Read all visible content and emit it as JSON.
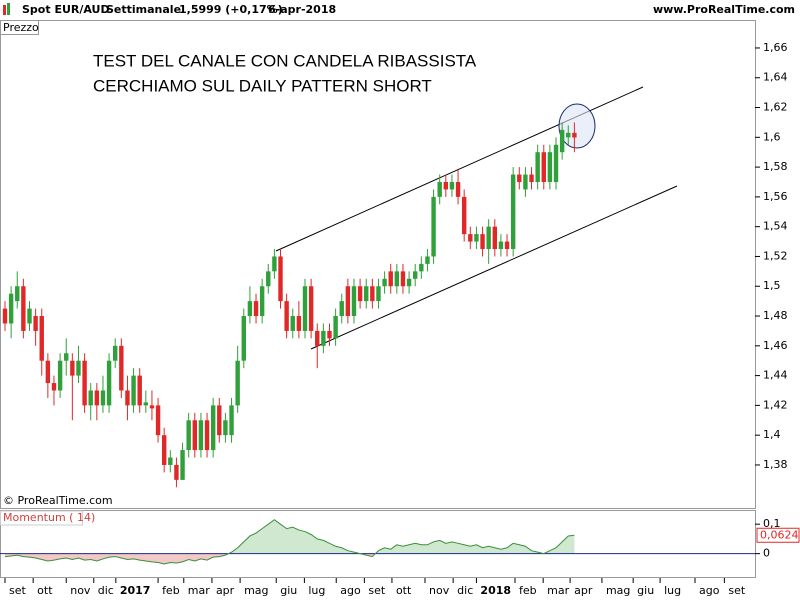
{
  "header": {
    "symbol": "Spot EUR/AUD",
    "period": "Settimanale",
    "quote": "1,5999 (+0,17%)",
    "date": "6-apr-2018",
    "site": "www.ProRealTime.com"
  },
  "chart_data": {
    "type": "candlestick",
    "pane_label": "Prezzo",
    "copyright": "© ProRealTime.com",
    "annotations": [
      "TEST DEL CANALE CON CANDELA RIBASSISTA",
      "CERCHIAMO SUL DAILY PATTERN SHORT"
    ],
    "up_color": "#2fa03a",
    "down_color": "#e02828",
    "xlim": [
      -0.817,
      122.5
    ],
    "xticks": [
      {
        "value": 0,
        "label": "set"
      },
      {
        "value": 4.6,
        "label": "ott"
      },
      {
        "value": 10,
        "label": "nov"
      },
      {
        "value": 14.5,
        "label": "dic"
      },
      {
        "value": 18.1,
        "label": "2017"
      },
      {
        "value": 25,
        "label": "feb"
      },
      {
        "value": 29.2,
        "label": "mar"
      },
      {
        "value": 33.8,
        "label": "apr"
      },
      {
        "value": 38.4,
        "label": "mag"
      },
      {
        "value": 44.3,
        "label": "giu"
      },
      {
        "value": 48.9,
        "label": "lug"
      },
      {
        "value": 54.1,
        "label": "ago"
      },
      {
        "value": 58.7,
        "label": "set"
      },
      {
        "value": 63.2,
        "label": "ott"
      },
      {
        "value": 68.6,
        "label": "nov"
      },
      {
        "value": 73.2,
        "label": "dic"
      },
      {
        "value": 77,
        "label": "2018"
      },
      {
        "value": 83.3,
        "label": "feb"
      },
      {
        "value": 87.9,
        "label": "mar"
      },
      {
        "value": 92.3,
        "label": "apr"
      },
      {
        "value": 97.5,
        "label": "mag"
      },
      {
        "value": 102.6,
        "label": "giu"
      },
      {
        "value": 107,
        "label": "lug"
      },
      {
        "value": 112.7,
        "label": "ago"
      },
      {
        "value": 117.5,
        "label": "set"
      }
    ],
    "ylim": [
      1.3511,
      1.6687
    ],
    "yticks": [
      {
        "value": 1.66,
        "label": "1,66"
      },
      {
        "value": 1.64,
        "label": "1,64"
      },
      {
        "value": 1.62,
        "label": "1,62"
      },
      {
        "value": 1.6,
        "label": "1,6"
      },
      {
        "value": 1.58,
        "label": "1,58"
      },
      {
        "value": 1.56,
        "label": "1,56"
      },
      {
        "value": 1.54,
        "label": "1,54"
      },
      {
        "value": 1.52,
        "label": "1,52"
      },
      {
        "value": 1.5,
        "label": "1,5"
      },
      {
        "value": 1.48,
        "label": "1,48"
      },
      {
        "value": 1.46,
        "label": "1,46"
      },
      {
        "value": 1.44,
        "label": "1,44"
      },
      {
        "value": 1.42,
        "label": "1,42"
      },
      {
        "value": 1.4,
        "label": "1,4"
      },
      {
        "value": 1.38,
        "label": "1,38"
      }
    ],
    "open": [
      1.485,
      1.475,
      1.49,
      1.5,
      1.475,
      1.48,
      1.48,
      1.45,
      1.435,
      1.43,
      1.45,
      1.45,
      1.44,
      1.45,
      1.42,
      1.43,
      1.42,
      1.42,
      1.45,
      1.46,
      1.43,
      1.42,
      1.44,
      1.42,
      1.42,
      1.42,
      1.4,
      1.38,
      1.38,
      1.37,
      1.39,
      1.41,
      1.39,
      1.41,
      1.39,
      1.42,
      1.4,
      1.4,
      1.42,
      1.45,
      1.48,
      1.49,
      1.48,
      1.5,
      1.51,
      1.52,
      1.49,
      1.47,
      1.48,
      1.47,
      1.5,
      1.47,
      1.46,
      1.47,
      1.465,
      1.48,
      1.5,
      1.48,
      1.5,
      1.49,
      1.5,
      1.49,
      1.5,
      1.51,
      1.5,
      1.51,
      1.5,
      1.505,
      1.51,
      1.515,
      1.52,
      1.56,
      1.57,
      1.565,
      1.57,
      1.56,
      1.535,
      1.53,
      1.535,
      1.525,
      1.54,
      1.525,
      1.53,
      1.525,
      1.575,
      1.565,
      1.575,
      1.57,
      1.59,
      1.57,
      1.57,
      1.59,
      1.6,
      1.603
    ],
    "high": [
      1.49,
      1.5,
      1.51,
      1.505,
      1.49,
      1.485,
      1.485,
      1.455,
      1.44,
      1.455,
      1.465,
      1.455,
      1.46,
      1.455,
      1.435,
      1.435,
      1.44,
      1.455,
      1.465,
      1.465,
      1.44,
      1.445,
      1.445,
      1.43,
      1.43,
      1.425,
      1.405,
      1.39,
      1.385,
      1.395,
      1.415,
      1.415,
      1.415,
      1.415,
      1.425,
      1.425,
      1.415,
      1.425,
      1.46,
      1.485,
      1.5,
      1.495,
      1.505,
      1.515,
      1.525,
      1.525,
      1.495,
      1.485,
      1.49,
      1.505,
      1.505,
      1.475,
      1.475,
      1.475,
      1.485,
      1.495,
      1.505,
      1.505,
      1.505,
      1.505,
      1.505,
      1.505,
      1.51,
      1.515,
      1.515,
      1.515,
      1.51,
      1.515,
      1.52,
      1.525,
      1.565,
      1.575,
      1.575,
      1.575,
      1.578,
      1.565,
      1.54,
      1.54,
      1.54,
      1.545,
      1.545,
      1.535,
      1.535,
      1.58,
      1.58,
      1.58,
      1.58,
      1.595,
      1.595,
      1.595,
      1.6,
      1.61,
      1.608,
      1.61
    ],
    "low": [
      1.47,
      1.465,
      1.485,
      1.465,
      1.47,
      1.46,
      1.44,
      1.425,
      1.42,
      1.425,
      1.44,
      1.41,
      1.435,
      1.415,
      1.41,
      1.41,
      1.415,
      1.415,
      1.445,
      1.425,
      1.41,
      1.415,
      1.415,
      1.415,
      1.41,
      1.395,
      1.375,
      1.375,
      1.365,
      1.37,
      1.385,
      1.385,
      1.385,
      1.385,
      1.385,
      1.395,
      1.395,
      1.395,
      1.415,
      1.445,
      1.475,
      1.475,
      1.475,
      1.495,
      1.505,
      1.485,
      1.465,
      1.465,
      1.465,
      1.465,
      1.465,
      1.445,
      1.455,
      1.46,
      1.46,
      1.475,
      1.475,
      1.475,
      1.485,
      1.485,
      1.485,
      1.485,
      1.495,
      1.495,
      1.495,
      1.495,
      1.495,
      1.5,
      1.505,
      1.51,
      1.515,
      1.555,
      1.56,
      1.56,
      1.555,
      1.53,
      1.525,
      1.525,
      1.52,
      1.515,
      1.52,
      1.52,
      1.52,
      1.52,
      1.565,
      1.56,
      1.565,
      1.565,
      1.565,
      1.565,
      1.565,
      1.585,
      1.595,
      1.59
    ],
    "close": [
      1.475,
      1.495,
      1.5,
      1.47,
      1.485,
      1.47,
      1.45,
      1.435,
      1.43,
      1.45,
      1.455,
      1.44,
      1.45,
      1.42,
      1.43,
      1.42,
      1.43,
      1.45,
      1.46,
      1.43,
      1.42,
      1.44,
      1.42,
      1.422,
      1.418,
      1.4,
      1.38,
      1.385,
      1.37,
      1.39,
      1.41,
      1.39,
      1.41,
      1.39,
      1.42,
      1.4,
      1.41,
      1.42,
      1.45,
      1.48,
      1.49,
      1.48,
      1.5,
      1.51,
      1.52,
      1.49,
      1.47,
      1.48,
      1.47,
      1.5,
      1.47,
      1.46,
      1.47,
      1.465,
      1.48,
      1.49,
      1.48,
      1.5,
      1.49,
      1.5,
      1.49,
      1.5,
      1.505,
      1.5,
      1.51,
      1.5,
      1.505,
      1.51,
      1.515,
      1.52,
      1.56,
      1.57,
      1.565,
      1.57,
      1.56,
      1.535,
      1.53,
      1.535,
      1.525,
      1.54,
      1.525,
      1.53,
      1.525,
      1.575,
      1.57,
      1.575,
      1.57,
      1.59,
      1.57,
      1.59,
      1.595,
      1.605,
      1.603,
      1.5999
    ],
    "momentum": {
      "name": "Momentum ( 14)",
      "color": "#3a8f3a",
      "ylim": [
        -0.0828,
        0.1448
      ],
      "yticks": [
        {
          "value": 0.1,
          "label": "0,1"
        },
        0
      ],
      "last_value_label": "0,0624",
      "values": [
        -0.01,
        -0.008,
        -0.005,
        -0.01,
        -0.012,
        -0.015,
        -0.02,
        -0.025,
        -0.022,
        -0.018,
        -0.015,
        -0.02,
        -0.015,
        -0.022,
        -0.02,
        -0.025,
        -0.018,
        -0.012,
        -0.01,
        -0.015,
        -0.02,
        -0.018,
        -0.022,
        -0.025,
        -0.028,
        -0.03,
        -0.035,
        -0.03,
        -0.032,
        -0.028,
        -0.02,
        -0.025,
        -0.018,
        -0.022,
        -0.012,
        -0.01,
        -0.005,
        0.005,
        0.02,
        0.04,
        0.06,
        0.07,
        0.085,
        0.1,
        0.115,
        0.1,
        0.085,
        0.09,
        0.08,
        0.075,
        0.065,
        0.05,
        0.045,
        0.035,
        0.025,
        0.02,
        0.01,
        0.005,
        0,
        -0.005,
        -0.01,
        0.01,
        0.02,
        0.015,
        0.03,
        0.025,
        0.03,
        0.035,
        0.03,
        0.03,
        0.04,
        0.045,
        0.035,
        0.04,
        0.035,
        0.03,
        0.025,
        0.03,
        0.02,
        0.025,
        0.02,
        0.015,
        0.02,
        0.035,
        0.03,
        0.025,
        0.01,
        0.005,
        0,
        0.01,
        0.02,
        0.04,
        0.06,
        0.0624
      ]
    }
  }
}
